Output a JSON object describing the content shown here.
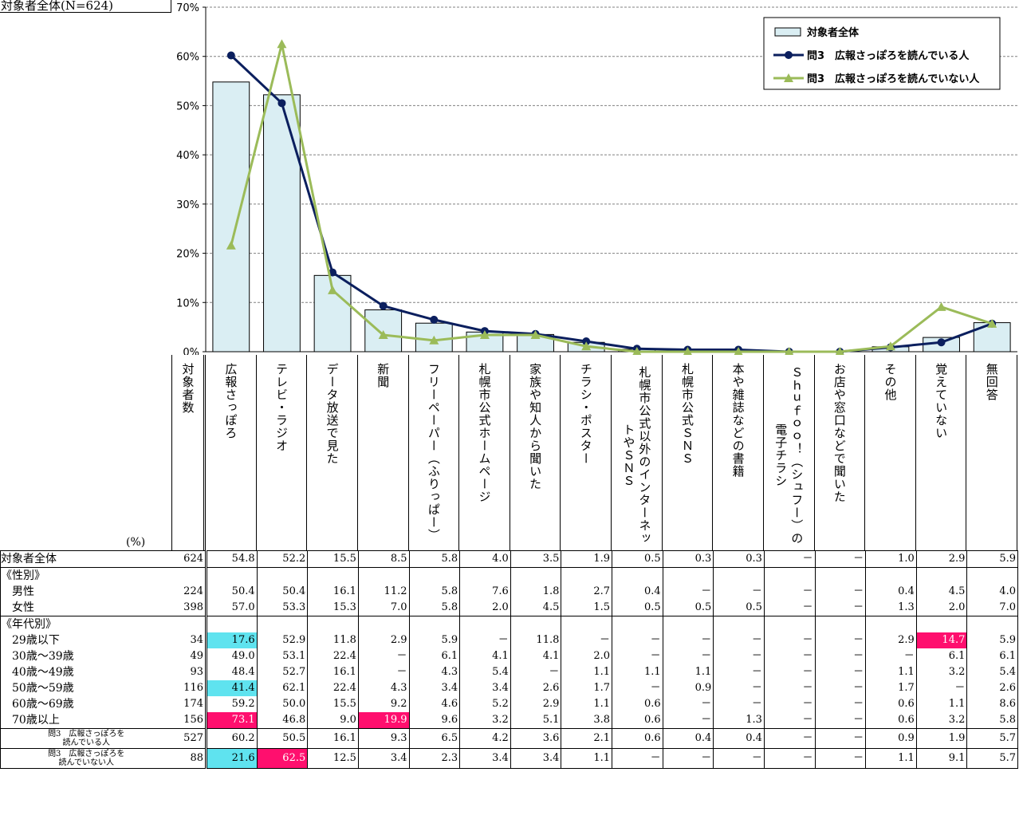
{
  "title_label": "対象者全体(N=624)",
  "chart_data": {
    "type": "bar",
    "y_ticks": [
      "0%",
      "10%",
      "20%",
      "30%",
      "40%",
      "50%",
      "60%",
      "70%"
    ],
    "ylim": [
      0,
      70
    ],
    "grid": true,
    "legend_placement": "top-right",
    "categories": [
      "広報さっぽろ",
      "テレビ・ラジオ",
      "データ放送で見た",
      "新聞",
      "フリーペーパー（ふりっぱー）",
      "札幌市公式ホームページ",
      "家族や知人から聞いた",
      "チラシ・ポスター",
      "札幌市公式以外のインターネットやＳＮＳ",
      "札幌市公式ＳＮＳ",
      "本や雑誌などの書籍",
      "Ｓｈｕｆｏｏ！（シュフー）の電子チラシ",
      "お店や窓口などで聞いた",
      "その他",
      "覚えていない",
      "無回答"
    ],
    "series": [
      {
        "name": "対象者全体",
        "kind": "bar",
        "color": "#daeef3",
        "values": [
          54.8,
          52.2,
          15.5,
          8.5,
          5.8,
          4.0,
          3.5,
          1.9,
          0.5,
          0.3,
          0.3,
          0,
          0,
          1.0,
          2.9,
          5.9
        ]
      },
      {
        "name": "問3　広報さっぽろを読んでいる人",
        "kind": "line",
        "color": "#0b1f5e",
        "values": [
          60.2,
          50.5,
          16.1,
          9.3,
          6.5,
          4.2,
          3.6,
          2.1,
          0.6,
          0.4,
          0.4,
          0,
          0,
          0.9,
          1.9,
          5.7
        ]
      },
      {
        "name": "問3　広報さっぽろを読んでいない人",
        "kind": "line",
        "color": "#9bbb59",
        "values": [
          21.6,
          62.5,
          12.5,
          3.4,
          2.3,
          3.4,
          3.4,
          1.1,
          0,
          0,
          0,
          0,
          0,
          1.1,
          9.1,
          5.7
        ]
      }
    ]
  },
  "table": {
    "n_header": "対象者数",
    "unit": "(%)",
    "col_headers": [
      "広報さっぽろ",
      "テレビ・ラジオ",
      "データ放送で見た",
      "新聞",
      "フリーペーパー（ふりっぱー）",
      "札幌市公式ホームページ",
      "家族や知人から聞いた",
      "チラシ・ポスター",
      "札幌市公式以外のインターネットやＳＮＳ",
      "札幌市公式ＳＮＳ",
      "本や雑誌などの書籍",
      "Ｓｈｕｆｏｏ！（シュフー）の電子チラシ",
      "お店や窓口などで聞いた",
      "その他",
      "覚えていない",
      "無回答"
    ],
    "rows": [
      {
        "label": "対象者全体",
        "n": "624",
        "vals": [
          "54.8",
          "52.2",
          "15.5",
          "8.5",
          "5.8",
          "4.0",
          "3.5",
          "1.9",
          "0.5",
          "0.3",
          "0.3",
          "－",
          "－",
          "1.0",
          "2.9",
          "5.9"
        ],
        "group_top": true
      },
      {
        "label": "《性別》",
        "n": "",
        "vals": [
          "",
          "",
          "",
          "",
          "",
          "",
          "",
          "",
          "",
          "",
          "",
          "",
          "",
          "",
          "",
          ""
        ],
        "group_top": true
      },
      {
        "label": "　男性",
        "n": "224",
        "vals": [
          "50.4",
          "50.4",
          "16.1",
          "11.2",
          "5.8",
          "7.6",
          "1.8",
          "2.7",
          "0.4",
          "－",
          "－",
          "－",
          "－",
          "0.4",
          "4.5",
          "4.0"
        ]
      },
      {
        "label": "　女性",
        "n": "398",
        "vals": [
          "57.0",
          "53.3",
          "15.3",
          "7.0",
          "5.8",
          "2.0",
          "4.5",
          "1.5",
          "0.5",
          "0.5",
          "0.5",
          "－",
          "－",
          "1.3",
          "2.0",
          "7.0"
        ]
      },
      {
        "label": "《年代別》",
        "n": "",
        "vals": [
          "",
          "",
          "",
          "",
          "",
          "",
          "",
          "",
          "",
          "",
          "",
          "",
          "",
          "",
          "",
          ""
        ],
        "group_top": true
      },
      {
        "label": "　29歳以下",
        "n": "34",
        "vals": [
          "17.6",
          "52.9",
          "11.8",
          "2.9",
          "5.9",
          "－",
          "11.8",
          "－",
          "－",
          "－",
          "－",
          "－",
          "－",
          "2.9",
          "14.7",
          "5.9"
        ],
        "hl": {
          "0": "cyan",
          "14": "pink"
        }
      },
      {
        "label": "　30歳～39歳",
        "n": "49",
        "vals": [
          "49.0",
          "53.1",
          "22.4",
          "－",
          "6.1",
          "4.1",
          "4.1",
          "2.0",
          "－",
          "－",
          "－",
          "－",
          "－",
          "－",
          "6.1",
          "6.1"
        ]
      },
      {
        "label": "　40歳～49歳",
        "n": "93",
        "vals": [
          "48.4",
          "52.7",
          "16.1",
          "－",
          "4.3",
          "5.4",
          "－",
          "1.1",
          "1.1",
          "1.1",
          "－",
          "－",
          "－",
          "1.1",
          "3.2",
          "5.4"
        ]
      },
      {
        "label": "　50歳～59歳",
        "n": "116",
        "vals": [
          "41.4",
          "62.1",
          "22.4",
          "4.3",
          "3.4",
          "3.4",
          "2.6",
          "1.7",
          "－",
          "0.9",
          "－",
          "－",
          "－",
          "1.7",
          "－",
          "2.6"
        ],
        "hl": {
          "0": "cyan"
        }
      },
      {
        "label": "　60歳～69歳",
        "n": "174",
        "vals": [
          "59.2",
          "50.0",
          "15.5",
          "9.2",
          "4.6",
          "5.2",
          "2.9",
          "1.1",
          "0.6",
          "－",
          "－",
          "－",
          "－",
          "0.6",
          "1.1",
          "8.6"
        ]
      },
      {
        "label": "　70歳以上",
        "n": "156",
        "vals": [
          "73.1",
          "46.8",
          "9.0",
          "19.9",
          "9.6",
          "3.2",
          "5.1",
          "3.8",
          "0.6",
          "－",
          "1.3",
          "－",
          "－",
          "0.6",
          "3.2",
          "5.8"
        ],
        "hl": {
          "0": "pink",
          "3": "pink"
        }
      },
      {
        "label": "問3　広報さっぽろを読んでいる人",
        "label_lines": [
          "問3　広報さっぽろを",
          "読んでいる人"
        ],
        "n": "527",
        "vals": [
          "60.2",
          "50.5",
          "16.1",
          "9.3",
          "6.5",
          "4.2",
          "3.6",
          "2.1",
          "0.6",
          "0.4",
          "0.4",
          "－",
          "－",
          "0.9",
          "1.9",
          "5.7"
        ],
        "group_top": true,
        "small": true
      },
      {
        "label": "問3　広報さっぽろを読んでいない人",
        "label_lines": [
          "問3　広報さっぽろを",
          "読んでいない人"
        ],
        "n": "88",
        "vals": [
          "21.6",
          "62.5",
          "12.5",
          "3.4",
          "2.3",
          "3.4",
          "3.4",
          "1.1",
          "－",
          "－",
          "－",
          "－",
          "－",
          "1.1",
          "9.1",
          "5.7"
        ],
        "hl": {
          "0": "cyan",
          "1": "pink"
        },
        "group_top": true,
        "small": true
      }
    ]
  }
}
